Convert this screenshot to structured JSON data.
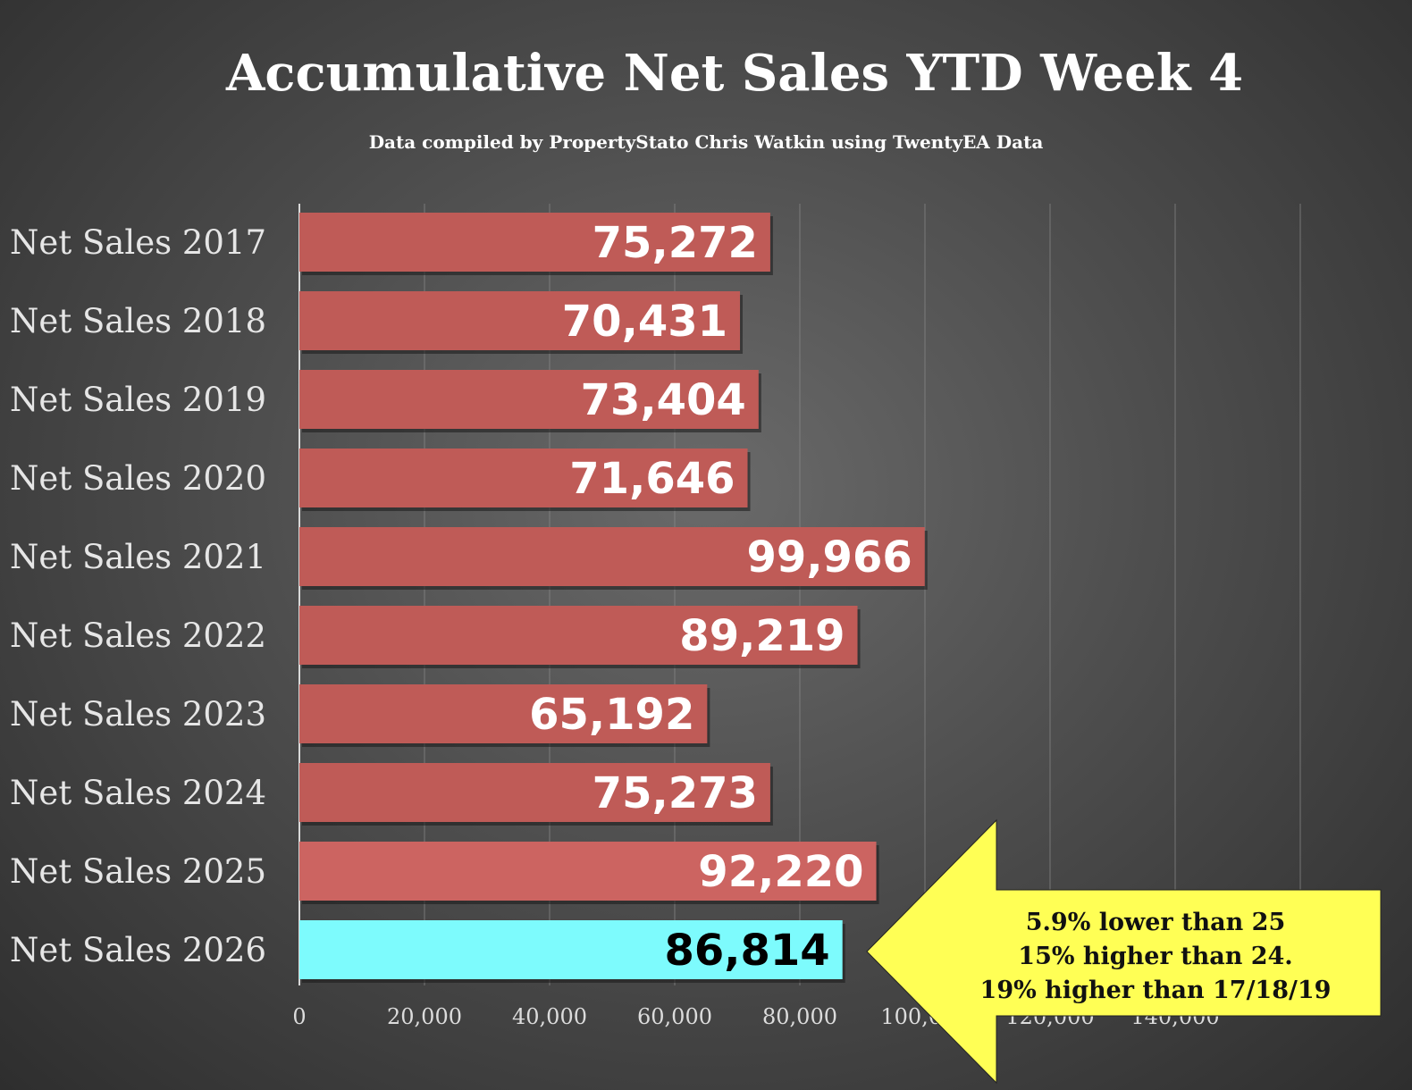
{
  "chart_data": {
    "type": "bar",
    "orientation": "horizontal",
    "title": "Accumulative Net Sales YTD Week 4",
    "subtitle": "Data compiled by PropertyStato Chris Watkin using TwentyEA Data",
    "categories": [
      "Net Sales 2017",
      "Net Sales 2018",
      "Net Sales 2019",
      "Net Sales 2020",
      "Net Sales 2021",
      "Net Sales 2022",
      "Net Sales 2023",
      "Net Sales 2024",
      "Net Sales 2025",
      "Net Sales 2026"
    ],
    "values": [
      75272,
      70431,
      73404,
      71646,
      99966,
      89219,
      65192,
      75273,
      92220,
      86814
    ],
    "data_labels": [
      "75,272",
      "70,431",
      "73,404",
      "71,646",
      "99,966",
      "89,219",
      "65,192",
      "75,273",
      "92,220",
      "86,814"
    ],
    "bar_colors": [
      "#bf5b57",
      "#bf5b57",
      "#bf5b57",
      "#bf5b57",
      "#bf5b57",
      "#bf5b57",
      "#bf5b57",
      "#bf5b57",
      "#cc6461",
      "#7dfbfd"
    ],
    "label_colors": [
      "#ffffff",
      "#ffffff",
      "#ffffff",
      "#ffffff",
      "#ffffff",
      "#ffffff",
      "#ffffff",
      "#ffffff",
      "#ffffff",
      "#000000"
    ],
    "xlim": [
      0,
      160000
    ],
    "x_ticks": [
      0,
      20000,
      40000,
      60000,
      80000,
      100000,
      120000,
      140000
    ],
    "x_tick_labels": [
      "0",
      "20,000",
      "40,000",
      "60,000",
      "80,000",
      "100,000",
      "120,000",
      "140,000"
    ],
    "grid": true,
    "legend": "none"
  },
  "callout": {
    "color": "#ffff55",
    "lines": [
      "5.9% lower than 25",
      "15% higher than 24.",
      "19% higher than 17/18/19"
    ]
  }
}
